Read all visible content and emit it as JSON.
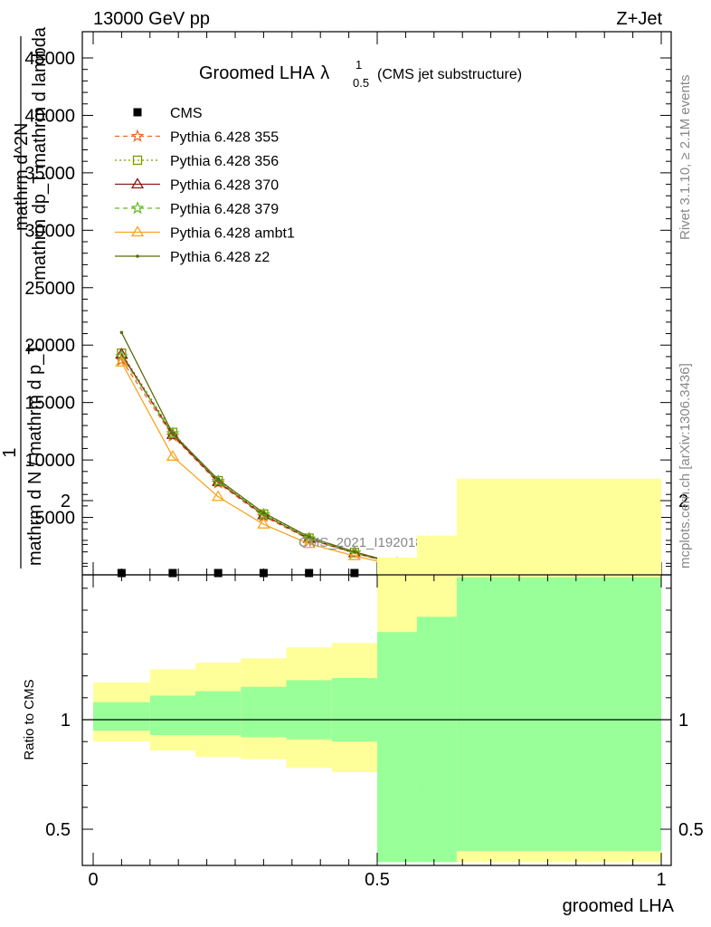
{
  "header": {
    "left": "13000 GeV pp",
    "right": "Z+Jet"
  },
  "chart_data": [
    {
      "type": "line",
      "title": "Groomed LHA",
      "title_math": "λ",
      "title_sup": "1",
      "title_sub": "0.5",
      "title_suffix": "(CMS jet substructure)",
      "ylabel_main": "1 / mathrm d N / mathrm d p_T mathrm d^2 N / mathrm d p_T mathrm d lambda",
      "ylabel_parts": [
        "mathrm d^2N",
        "mathrm dp_T mathrm d lambda",
        "1",
        "mathrm d N / mathrm d p_T"
      ],
      "watermark": "CMS_2021_I1920187",
      "xlim": [
        0,
        1
      ],
      "ylim": [
        0,
        45000
      ],
      "yticks": [
        5000,
        10000,
        15000,
        20000,
        25000,
        30000,
        35000,
        40000,
        45000
      ],
      "ytick_labels": [
        "5000",
        "10000",
        "15000",
        "20000",
        "25000",
        "30000",
        "35000",
        "40000",
        "45000"
      ],
      "bin_edges": [
        0,
        0.1,
        0.18,
        0.26,
        0.34,
        0.42,
        0.5,
        0.57,
        0.64,
        1.0
      ],
      "x": [
        0.05,
        0.14,
        0.22,
        0.3,
        0.38,
        0.46,
        0.535,
        0.605,
        0.82
      ],
      "legend_position": "top-left",
      "series": [
        {
          "name": "CMS",
          "color": "#000000",
          "marker": "square",
          "values": [
            0,
            0,
            0,
            0,
            0,
            0,
            0,
            0,
            0
          ]
        },
        {
          "name": "Pythia 6.428 355",
          "color": "#f26522",
          "marker": "star",
          "dash": "5,4",
          "values": [
            18700,
            12100,
            8000,
            5100,
            3100,
            1900,
            950,
            380,
            80
          ]
        },
        {
          "name": "Pythia 6.428 356",
          "color": "#7a9a01",
          "marker": "open-square",
          "dash": "2,3",
          "values": [
            19300,
            12400,
            8200,
            5300,
            3200,
            1950,
            980,
            390,
            80
          ]
        },
        {
          "name": "Pythia 6.428 370",
          "color": "#8b1a1a",
          "marker": "open-triangle",
          "dash": "",
          "values": [
            19200,
            12200,
            8100,
            5200,
            3150,
            1900,
            960,
            380,
            80
          ]
        },
        {
          "name": "Pythia 6.428 379",
          "color": "#66bb22",
          "marker": "star",
          "dash": "5,4",
          "values": [
            19000,
            12300,
            8150,
            5250,
            3150,
            1920,
            970,
            385,
            80
          ]
        },
        {
          "name": "Pythia 6.428 ambt1",
          "color": "#f5a623",
          "marker": "open-triangle",
          "dash": "",
          "values": [
            18500,
            10300,
            6800,
            4400,
            2700,
            1650,
            820,
            330,
            70
          ]
        },
        {
          "name": "Pythia 6.428 z2",
          "color": "#5b6b0f",
          "marker": "dot",
          "dash": "",
          "values": [
            21100,
            12300,
            8300,
            5400,
            3300,
            2000,
            1000,
            400,
            80
          ]
        }
      ]
    },
    {
      "type": "area",
      "ylabel": "Ratio to CMS",
      "xlabel": "groomed LHA",
      "xlim": [
        0,
        1
      ],
      "ylim": [
        0.35,
        2.25
      ],
      "xticks": [
        0,
        0.5,
        1
      ],
      "xtick_labels": [
        "0",
        "0.5",
        "1"
      ],
      "yticks": [
        0.5,
        1,
        2
      ],
      "ytick_labels": [
        "0.5",
        "1",
        "2"
      ],
      "bin_edges": [
        0,
        0.1,
        0.18,
        0.26,
        0.34,
        0.42,
        0.5,
        0.57,
        0.64,
        1.0
      ],
      "band_stat": {
        "color": "#99ff99",
        "low": [
          0.95,
          0.93,
          0.93,
          0.92,
          0.91,
          0.9,
          0.34,
          0.34,
          0.4
        ],
        "high": [
          1.08,
          1.11,
          1.13,
          1.15,
          1.18,
          1.19,
          1.4,
          1.47,
          1.65
        ]
      },
      "band_total": {
        "color": "#ffff99",
        "low": [
          0.9,
          0.86,
          0.83,
          0.82,
          0.78,
          0.76,
          0.71,
          0.65,
          0.34
        ],
        "high": [
          1.17,
          1.23,
          1.26,
          1.28,
          1.33,
          1.35,
          1.74,
          1.84,
          2.1
        ]
      },
      "reference": 1
    }
  ],
  "side_labels": {
    "rivet": "Rivet 3.1.10, ≥ 2.1M events",
    "mcplots": "mcplots.cern.ch [arXiv:1306.3436]"
  }
}
